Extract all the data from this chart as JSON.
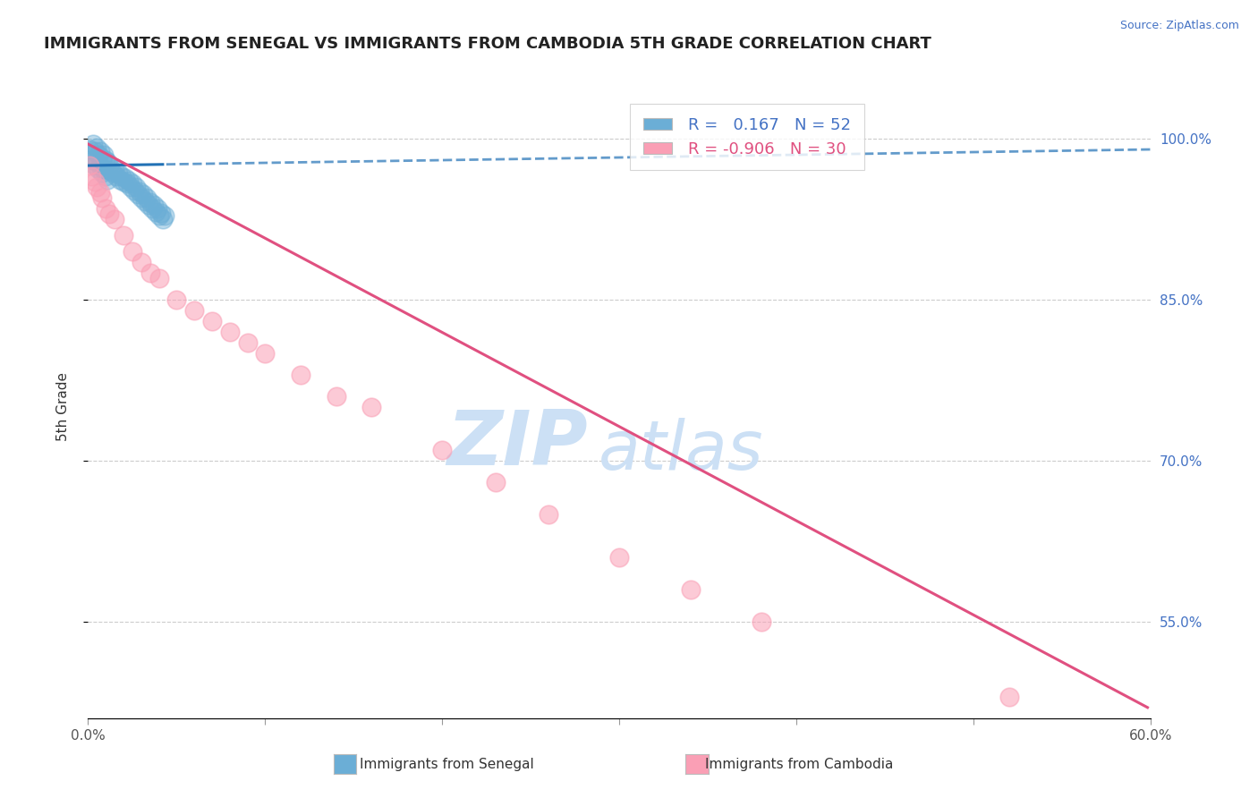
{
  "title": "IMMIGRANTS FROM SENEGAL VS IMMIGRANTS FROM CAMBODIA 5TH GRADE CORRELATION CHART",
  "source": "Source: ZipAtlas.com",
  "ylabel": "5th Grade",
  "legend_label_blue": "Immigrants from Senegal",
  "legend_label_pink": "Immigrants from Cambodia",
  "r_blue": 0.167,
  "n_blue": 52,
  "r_pink": -0.906,
  "n_pink": 30,
  "xlim": [
    0.0,
    0.6
  ],
  "ylim": [
    0.46,
    1.04
  ],
  "yticks": [
    0.55,
    0.7,
    0.85,
    1.0
  ],
  "ytick_labels": [
    "55.0%",
    "70.0%",
    "85.0%",
    "100.0%"
  ],
  "xticks": [
    0.0,
    0.1,
    0.2,
    0.3,
    0.4,
    0.5,
    0.6
  ],
  "xtick_labels": [
    "0.0%",
    "",
    "",
    "",
    "",
    "",
    "60.0%"
  ],
  "grid_color": "#cccccc",
  "blue_color": "#6baed6",
  "pink_color": "#fa9fb5",
  "blue_line_color": "#2171b5",
  "pink_line_color": "#e05080",
  "axis_label_color": "#4472c4",
  "watermark_zip": "ZIP",
  "watermark_atlas": "atlas",
  "watermark_color": "#cce0f5",
  "blue_scatter_x": [
    0.001,
    0.002,
    0.003,
    0.003,
    0.004,
    0.004,
    0.005,
    0.005,
    0.006,
    0.006,
    0.007,
    0.007,
    0.008,
    0.008,
    0.009,
    0.009,
    0.01,
    0.01,
    0.011,
    0.011,
    0.012,
    0.013,
    0.014,
    0.015,
    0.016,
    0.017,
    0.018,
    0.019,
    0.02,
    0.021,
    0.022,
    0.023,
    0.024,
    0.025,
    0.026,
    0.027,
    0.028,
    0.029,
    0.03,
    0.031,
    0.032,
    0.033,
    0.034,
    0.035,
    0.036,
    0.037,
    0.038,
    0.039,
    0.04,
    0.041,
    0.042,
    0.043
  ],
  "blue_scatter_y": [
    0.99,
    0.985,
    0.995,
    0.98,
    0.988,
    0.975,
    0.992,
    0.978,
    0.985,
    0.972,
    0.988,
    0.975,
    0.982,
    0.968,
    0.985,
    0.972,
    0.98,
    0.965,
    0.978,
    0.962,
    0.975,
    0.97,
    0.968,
    0.972,
    0.965,
    0.968,
    0.962,
    0.965,
    0.96,
    0.963,
    0.958,
    0.961,
    0.955,
    0.958,
    0.952,
    0.955,
    0.948,
    0.951,
    0.945,
    0.948,
    0.942,
    0.945,
    0.938,
    0.941,
    0.935,
    0.938,
    0.932,
    0.935,
    0.928,
    0.931,
    0.925,
    0.928
  ],
  "pink_scatter_x": [
    0.001,
    0.002,
    0.004,
    0.005,
    0.007,
    0.008,
    0.01,
    0.012,
    0.015,
    0.02,
    0.025,
    0.03,
    0.035,
    0.04,
    0.05,
    0.06,
    0.07,
    0.08,
    0.09,
    0.1,
    0.12,
    0.14,
    0.16,
    0.2,
    0.23,
    0.26,
    0.3,
    0.34,
    0.38,
    0.52
  ],
  "pink_scatter_y": [
    0.975,
    0.965,
    0.96,
    0.955,
    0.95,
    0.945,
    0.935,
    0.93,
    0.925,
    0.91,
    0.895,
    0.885,
    0.875,
    0.87,
    0.85,
    0.84,
    0.83,
    0.82,
    0.81,
    0.8,
    0.78,
    0.76,
    0.75,
    0.71,
    0.68,
    0.65,
    0.61,
    0.58,
    0.55,
    0.48
  ],
  "blue_line_x0": 0.0,
  "blue_line_x1": 0.6,
  "blue_line_y0": 0.975,
  "blue_line_y1": 0.99,
  "blue_line_solid_end": 0.044,
  "pink_line_x0": 0.0,
  "pink_line_x1": 0.598,
  "pink_line_y0": 0.995,
  "pink_line_y1": 0.47
}
